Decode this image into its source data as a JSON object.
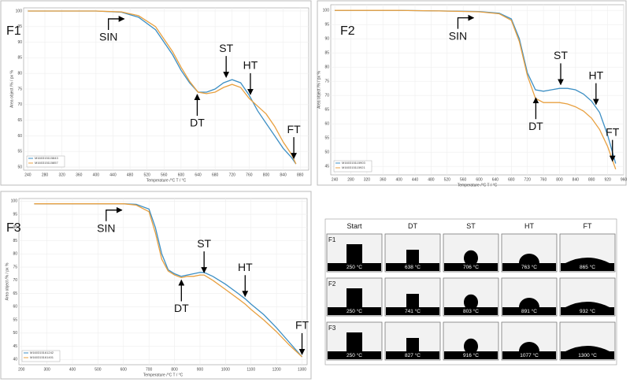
{
  "chart_data": [
    {
      "type": "line",
      "label": "F1",
      "xlabel": "Temperature /°C T / °C",
      "ylabel": "Area object /% / px %",
      "x": [
        240,
        300,
        400,
        460,
        500,
        540,
        580,
        600,
        620,
        640,
        660,
        680,
        700,
        720,
        740,
        760,
        780,
        800,
        820,
        840,
        860,
        870
      ],
      "series": [
        {
          "name": "M160315115843",
          "color": "#3d8fc4",
          "values": [
            100,
            100,
            100,
            99.6,
            98,
            94,
            86,
            81,
            77,
            74,
            74,
            75,
            77,
            78,
            77,
            73,
            68,
            64,
            60,
            56,
            53,
            51
          ]
        },
        {
          "name": "M160315115857",
          "color": "#e8a040",
          "values": [
            100,
            100,
            100,
            99.7,
            98.5,
            95,
            87,
            82,
            77.5,
            74,
            73.5,
            74,
            75.5,
            76.5,
            75.5,
            72,
            69.5,
            67,
            63,
            58,
            54,
            51
          ]
        }
      ],
      "xlim": [
        230,
        900
      ],
      "xticks": [
        240,
        280,
        320,
        360,
        400,
        440,
        480,
        520,
        560,
        600,
        640,
        680,
        720,
        760,
        800,
        840,
        880
      ],
      "ylim": [
        49,
        101
      ],
      "yticks": [
        50,
        55,
        60,
        65,
        70,
        75,
        80,
        85,
        90,
        95,
        100
      ],
      "grid": true,
      "legend": "lower left",
      "annotations": [
        {
          "text": "SIN",
          "x": 470,
          "y": 99.5
        },
        {
          "text": "DT",
          "x": 638,
          "y": 74
        },
        {
          "text": "ST",
          "x": 706,
          "y": 78
        },
        {
          "text": "HT",
          "x": 763,
          "y": 72.5
        },
        {
          "text": "FT",
          "x": 865,
          "y": 52
        }
      ]
    },
    {
      "type": "line",
      "label": "F2",
      "xlabel": "Temperature /°C T / °C",
      "ylabel": "Area object /% / px %",
      "x": [
        240,
        300,
        400,
        500,
        600,
        650,
        680,
        700,
        720,
        740,
        760,
        780,
        800,
        820,
        840,
        860,
        880,
        900,
        920,
        940
      ],
      "series": [
        {
          "name": "M160315115903",
          "color": "#3d8fc4",
          "values": [
            100,
            100,
            100,
            99.8,
            99.6,
            99,
            97,
            90,
            78,
            72,
            71.5,
            72,
            72.5,
            72.5,
            72,
            70.5,
            68,
            64,
            56,
            46
          ]
        },
        {
          "name": "M160315115921",
          "color": "#e8a040",
          "values": [
            100,
            100,
            100,
            99.8,
            99.5,
            98.8,
            96.5,
            89,
            77,
            69,
            67.5,
            67.5,
            67.5,
            67,
            66,
            64.5,
            62,
            58,
            52,
            44
          ]
        }
      ],
      "xlim": [
        230,
        960
      ],
      "xticks": [
        240,
        280,
        320,
        360,
        400,
        440,
        480,
        520,
        560,
        600,
        640,
        680,
        720,
        760,
        800,
        840,
        880,
        920,
        960
      ],
      "ylim": [
        42,
        102
      ],
      "yticks": [
        45,
        50,
        55,
        60,
        65,
        70,
        75,
        80,
        85,
        90,
        95,
        100
      ],
      "grid": true,
      "legend": "lower left",
      "annotations": [
        {
          "text": "SIN",
          "x": 590,
          "y": 99.6
        },
        {
          "text": "DT",
          "x": 741,
          "y": 70
        },
        {
          "text": "ST",
          "x": 803,
          "y": 73
        },
        {
          "text": "HT",
          "x": 891,
          "y": 66
        },
        {
          "text": "FT",
          "x": 932,
          "y": 46
        }
      ]
    },
    {
      "type": "line",
      "label": "F3",
      "xlabel": "Temperature /°C T / °C",
      "ylabel": "Area object /% / px %",
      "x": [
        250,
        400,
        500,
        600,
        650,
        700,
        725,
        750,
        775,
        800,
        827,
        850,
        875,
        900,
        916,
        950,
        1000,
        1050,
        1077,
        1100,
        1150,
        1200,
        1250,
        1300
      ],
      "series": [
        {
          "name": "M160315161242",
          "color": "#3d8fc4",
          "values": [
            99,
            99,
            99,
            99,
            98.8,
            97,
            90,
            80,
            74,
            72.5,
            71.5,
            72,
            72.5,
            73,
            73,
            71.5,
            68.5,
            65,
            63,
            61,
            57,
            52,
            46.5,
            41
          ]
        },
        {
          "name": "M160315161401",
          "color": "#e8a040",
          "values": [
            99,
            99,
            99,
            99,
            98.5,
            96,
            88,
            78,
            73.5,
            72,
            71,
            71.5,
            71.5,
            72,
            72,
            70,
            66.5,
            63,
            61,
            59,
            55,
            50.5,
            45.5,
            41
          ]
        }
      ],
      "xlim": [
        190,
        1320
      ],
      "xticks": [
        200,
        300,
        400,
        500,
        600,
        700,
        800,
        900,
        1000,
        1100,
        1200,
        1300
      ],
      "ylim": [
        38,
        101
      ],
      "yticks": [
        40,
        45,
        50,
        55,
        60,
        65,
        70,
        75,
        80,
        85,
        90,
        95,
        100
      ],
      "grid": true,
      "legend": "lower left",
      "annotations": [
        {
          "text": "SIN",
          "x": 600,
          "y": 99
        },
        {
          "text": "DT",
          "x": 827,
          "y": 71
        },
        {
          "text": "ST",
          "x": 916,
          "y": 72
        },
        {
          "text": "HT",
          "x": 1077,
          "y": 63
        },
        {
          "text": "FT",
          "x": 1300,
          "y": 41
        }
      ]
    }
  ],
  "table": {
    "columns": [
      "Start",
      "DT",
      "ST",
      "HT",
      "FT"
    ],
    "rows": [
      {
        "label": "F1",
        "cells": [
          "250 °C",
          "638 °C",
          "706 °C",
          "763 °C",
          "865 °C"
        ]
      },
      {
        "label": "F2",
        "cells": [
          "250 °C",
          "741 °C",
          "803 °C",
          "891 °C",
          "932 °C"
        ]
      },
      {
        "label": "F3",
        "cells": [
          "250 °C",
          "827 °C",
          "916 °C",
          "1077 °C",
          "1300 °C"
        ]
      }
    ]
  }
}
